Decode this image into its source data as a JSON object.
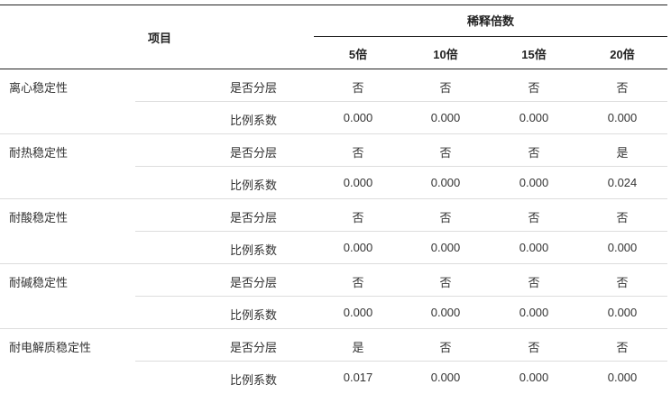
{
  "header": {
    "item": "项目",
    "dilution": "稀释倍数",
    "columns": [
      "5倍",
      "10倍",
      "15倍",
      "20倍"
    ]
  },
  "groups": [
    {
      "name": "离心稳定性",
      "rows": [
        {
          "label": "是否分层",
          "values": [
            "否",
            "否",
            "否",
            "否"
          ]
        },
        {
          "label": "比例系数",
          "values": [
            "0.000",
            "0.000",
            "0.000",
            "0.000"
          ]
        }
      ]
    },
    {
      "name": "耐热稳定性",
      "rows": [
        {
          "label": "是否分层",
          "values": [
            "否",
            "否",
            "否",
            "是"
          ]
        },
        {
          "label": "比例系数",
          "values": [
            "0.000",
            "0.000",
            "0.000",
            "0.024"
          ]
        }
      ]
    },
    {
      "name": "耐酸稳定性",
      "rows": [
        {
          "label": "是否分层",
          "values": [
            "否",
            "否",
            "否",
            "否"
          ]
        },
        {
          "label": "比例系数",
          "values": [
            "0.000",
            "0.000",
            "0.000",
            "0.000"
          ]
        }
      ]
    },
    {
      "name": "耐碱稳定性",
      "rows": [
        {
          "label": "是否分层",
          "values": [
            "否",
            "否",
            "否",
            "否"
          ]
        },
        {
          "label": "比例系数",
          "values": [
            "0.000",
            "0.000",
            "0.000",
            "0.000"
          ]
        }
      ]
    },
    {
      "name": "耐电解质稳定性",
      "rows": [
        {
          "label": "是否分层",
          "values": [
            "是",
            "否",
            "否",
            "否"
          ]
        },
        {
          "label": "比例系数",
          "values": [
            "0.017",
            "0.000",
            "0.000",
            "0.000"
          ]
        }
      ]
    }
  ]
}
